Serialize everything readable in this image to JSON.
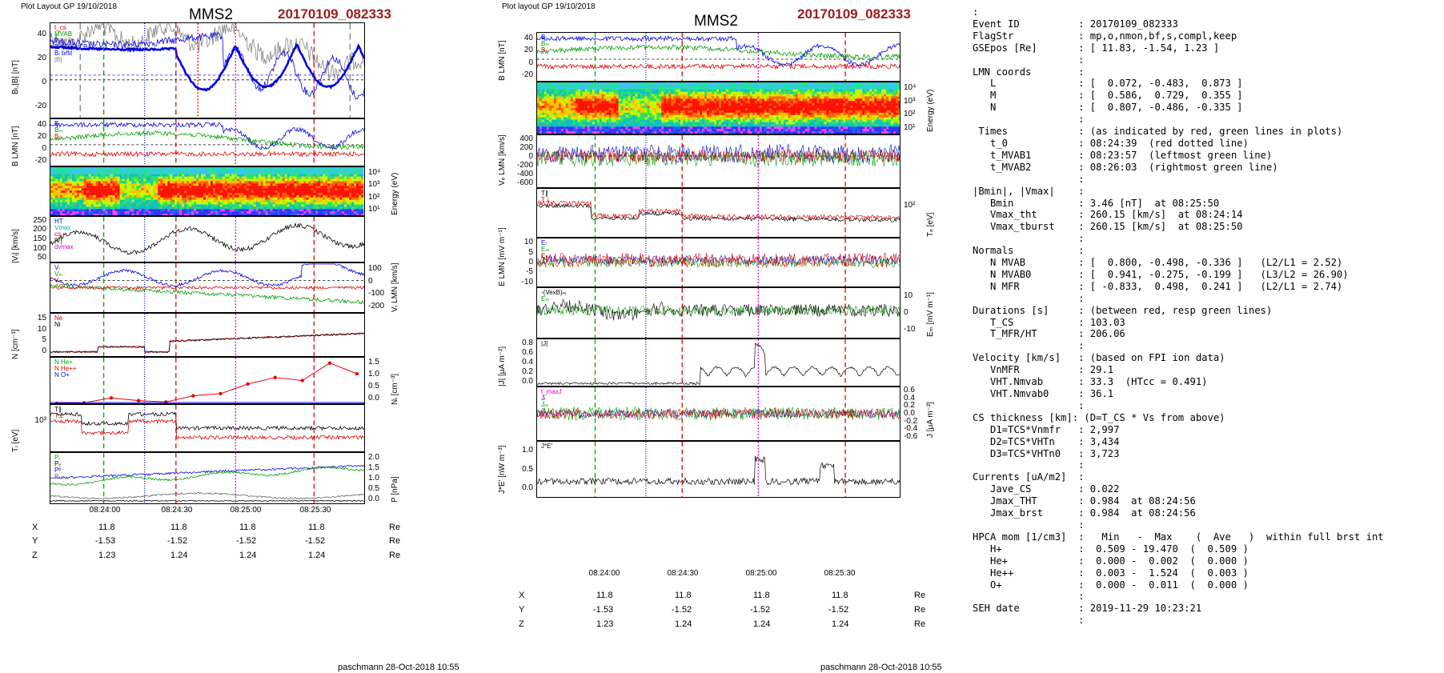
{
  "header": {
    "left_layout": "Plot Layout GP 19/10/2018",
    "right_layout": "Plot layout GP 19/10/2018",
    "spacecraft": "MMS2",
    "event": "20170109_082333"
  },
  "footer": {
    "left": "paschmann 28-Oct-2018 10:55",
    "right": "paschmann 28-Oct-2018 10:55"
  },
  "time_axis": {
    "ticks": [
      "08:24:00",
      "08:24:30",
      "08:25:00",
      "08:25:30"
    ]
  },
  "coords": {
    "labels": [
      "X",
      "Y",
      "Z"
    ],
    "unit": "Re",
    "X": [
      "11.8",
      "11.8",
      "11.8",
      "11.8"
    ],
    "Y": [
      "-1.53",
      "-1.52",
      "-1.52",
      "-1.52"
    ],
    "Z": [
      "1.23",
      "1.24",
      "1.24",
      "1.24"
    ]
  },
  "left_panels": {
    "p1": {
      "ylabel": "Bₗ,|B| [nT]",
      "ticks": [
        "40",
        "20",
        "0",
        "-20"
      ],
      "legend": [
        "t_cs",
        "MVAB",
        "Bmin",
        "Bₗ 60% of Bₗ",
        "Bₗ brst",
        "|B|"
      ]
    },
    "p2": {
      "ylabel": "B LMN [nT]",
      "ticks": [
        "40",
        "20",
        "0",
        "-20"
      ],
      "legend": [
        "Bₗ",
        "Bₘ",
        "Bₙ"
      ]
    },
    "p3": {
      "ylabel": "Energy (eV)",
      "ticks": [
        "10⁴",
        "10³",
        "10²",
        "10¹"
      ]
    },
    "p4": {
      "ylabel": "|Vᵢ| [km/s]",
      "ticks": [
        "250",
        "200",
        "150",
        "100",
        "50"
      ],
      "legend": [
        "HT",
        "Vmax",
        "cs",
        "|V|",
        "dvmax"
      ]
    },
    "p5": {
      "ylabel": "Vᵢ LMN [km/s]",
      "ticks": [
        "100",
        "0",
        "-100",
        "-200"
      ],
      "legend": [
        "Vₗ",
        "Vₘ",
        "Vₙ"
      ]
    },
    "p6": {
      "ylabel": "N [cm⁻³]",
      "ticks": [
        "15",
        "10",
        "5",
        "0"
      ],
      "legend": [
        "Ne",
        "Ni"
      ]
    },
    "p7": {
      "ylabel": "Nᵢ [cm⁻³]",
      "ticks": [
        "1.5",
        "1.0",
        "0.5",
        "0.0"
      ],
      "legend": [
        "N He+",
        "N He++",
        "N O+"
      ]
    },
    "p8": {
      "ylabel": "Tᵢ [eV]",
      "ticks": [
        "10³"
      ],
      "legend": [
        "T∥",
        "T⊥"
      ]
    },
    "p9": {
      "ylabel": "P [nPa]",
      "ticks": [
        "2.0",
        "1.5",
        "1.0",
        "0.5",
        "0.0"
      ],
      "legend": [
        "Pᵢ",
        "Pₑ",
        "Pᵇ",
        "Pₜₒₜ"
      ]
    }
  },
  "right_panels": {
    "q1": {
      "ylabel": "B LMN [nT]",
      "ticks": [
        "40",
        "20",
        "0",
        "-20"
      ],
      "legend": [
        "Bₗ",
        "Bₘ",
        "Bₙ"
      ]
    },
    "q2": {
      "ylabel": "Energy (eV)",
      "ticks": [
        "10⁴",
        "10³",
        "10²",
        "10¹"
      ]
    },
    "q3": {
      "ylabel": "Vₑ LMN [km/s]",
      "ticks": [
        "400",
        "200",
        "0",
        "-200",
        "-400",
        "-600"
      ]
    },
    "q4": {
      "ylabel": "Tₑ [eV]",
      "ticks": [
        "10²"
      ],
      "legend": [
        "T∥",
        "T⊥"
      ]
    },
    "q5": {
      "ylabel": "E LMN [mV m⁻¹]",
      "ticks": [
        "10",
        "5",
        "0",
        "-5",
        "-10"
      ],
      "legend": [
        "Eₗ",
        "Eₘ",
        "Eₙ"
      ]
    },
    "q6": {
      "ylabel": "Eₘ [mV m⁻¹]",
      "ticks": [
        "10",
        "0",
        "-10"
      ],
      "legend": [
        "-(VexB)ₘ",
        "Eₘ"
      ]
    },
    "q7": {
      "ylabel": "|J| [μA m⁻²]",
      "ticks": [
        "0.8",
        "0.6",
        "0.4",
        "0.2",
        "0.0"
      ],
      "legend": [
        "|J|"
      ]
    },
    "q8": {
      "ylabel": "J [μA m⁻²]",
      "ticks": [
        "0.6",
        "0.4",
        "0.2",
        "0.0",
        "-0.2",
        "-0.4",
        "-0.6"
      ],
      "legend": [
        "t_maxJ",
        "Jₗ",
        "Jₘ",
        "Jₙ"
      ]
    },
    "q9": {
      "ylabel": "J*E' [nW m⁻³]",
      "ticks": [
        "1.0",
        "0.5",
        "0.0"
      ],
      "legend": [
        "J*E'"
      ]
    }
  },
  "info": {
    "lines": [
      ":",
      "Event ID          : 20170109_082333",
      "FlagStr           : mp,o,nmon,bf,s,compl,keep",
      "GSEpos [Re]       : [ 11.83, -1.54, 1.23 ]",
      "                  :",
      "LMN coords        :",
      "   L              : [  0.072, -0.483,  0.873 ]",
      "   M              : [  0.586,  0.729,  0.355 ]",
      "   N              : [  0.807, -0.486, -0.335 ]",
      "                  :",
      " Times            : (as indicated by red, green lines in plots)",
      "   t_0            : 08:24:39  (red dotted line)",
      "   t_MVAB1        : 08:23:57  (leftmost green line)",
      "   t_MVAB2        : 08:26:03  (rightmost green line)",
      "                  :",
      "|Bmin|, |Vmax|    :",
      "   Bmin           : 3.46 [nT]  at 08:25:50",
      "   Vmax_tht       : 260.15 [km/s]  at 08:24:14",
      "   Vmax_tburst    : 260.15 [km/s]  at 08:25:50",
      "                  :",
      "Normals           :",
      "   N MVAB         : [  0.800, -0.498, -0.336 ]   (L2/L1 = 2.52)",
      "   N MVAB0        : [  0.941, -0.275, -0.199 ]   (L3/L2 = 26.90)",
      "   N MFR          : [ -0.833,  0.498,  0.241 ]   (L2/L1 = 2.74)",
      "                  :",
      "Durations [s]     : (between red, resp green lines)",
      "   T_CS           : 103.03",
      "   T_MFR/HT       : 206.06",
      "                  :",
      "Velocity [km/s]   : (based on FPI ion data)",
      "   VnMFR          : 29.1",
      "   VHT.Nmvab      : 33.3  (HTcc = 0.491)",
      "   VHT.Nmvab0     : 36.1",
      "                  :",
      "CS thickness [km]: (D=T_CS * Vs from above)",
      "   D1=TCS*Vnmfr   : 2,997",
      "   D2=TCS*VHTn    : 3,434",
      "   D3=TCS*VHTn0   : 3,723",
      "                  :",
      "Currents [uA/m2]  :",
      "   Jave_CS        : 0.022",
      "   Jmax_THT       : 0.984  at 08:24:56",
      "   Jmax_brst      : 0.984  at 08:24:56",
      "                  :",
      "HPCA mom [1/cm3]  :   Min   -  Max    (  Ave   )  within full brst int",
      "   H+             :  0.509 - 19.470  (  0.509 )",
      "   He+            :  0.000 -  0.002  (  0.000 )",
      "   He++           :  0.003 -  1.524  (  0.003 )",
      "   O+             :  0.000 -  0.011  (  0.000 )",
      "                  :",
      "SEH date          : 2019-11-29 10:23:21",
      "                  :"
    ]
  },
  "colors": {
    "red": "#e00000",
    "green": "#00a000",
    "blue": "#0000e0",
    "magenta": "#d000d0",
    "grey": "#808080",
    "black": "#000000",
    "event": "#9b1c1c"
  },
  "chart_data": [
    {
      "type": "line",
      "title": "MMS2 20170109_082333",
      "x_ticks": [
        "08:24:00",
        "08:24:30",
        "08:25:00",
        "08:25:30"
      ],
      "panels": [
        "Bₗ,|B| [nT]",
        "B LMN [nT]",
        "Energy (eV)",
        "|Vᵢ| [km/s]",
        "Vᵢ LMN [km/s]",
        "N [cm⁻³]",
        "Nᵢ [cm⁻³]",
        "Tᵢ [eV]",
        "P [nPa]"
      ],
      "series": [
        {
          "name": "N He++",
          "x": [
            "08:23:38",
            "08:23:48",
            "08:24:05",
            "08:24:20",
            "08:24:30",
            "08:24:42",
            "08:24:53",
            "08:25:03",
            "08:25:13",
            "08:25:23",
            "08:25:34",
            "08:25:44"
          ],
          "values": [
            0.0,
            0.02,
            0.2,
            0.1,
            0.05,
            0.28,
            0.36,
            0.72,
            0.96,
            0.85,
            1.5,
            1.1
          ]
        }
      ]
    },
    {
      "type": "line",
      "title": "MMS2 20170109_082333",
      "x_ticks": [
        "08:24:00",
        "08:24:30",
        "08:25:00",
        "08:25:30"
      ],
      "panels": [
        "B LMN [nT]",
        "Energy (eV)",
        "Vₑ LMN [km/s]",
        "Tₑ [eV]",
        "E LMN [mV m⁻¹]",
        "Eₘ [mV m⁻¹]",
        "|J| [μA m⁻²]",
        "J [μA m⁻²]",
        "J*E' [nW m⁻³]"
      ]
    }
  ]
}
